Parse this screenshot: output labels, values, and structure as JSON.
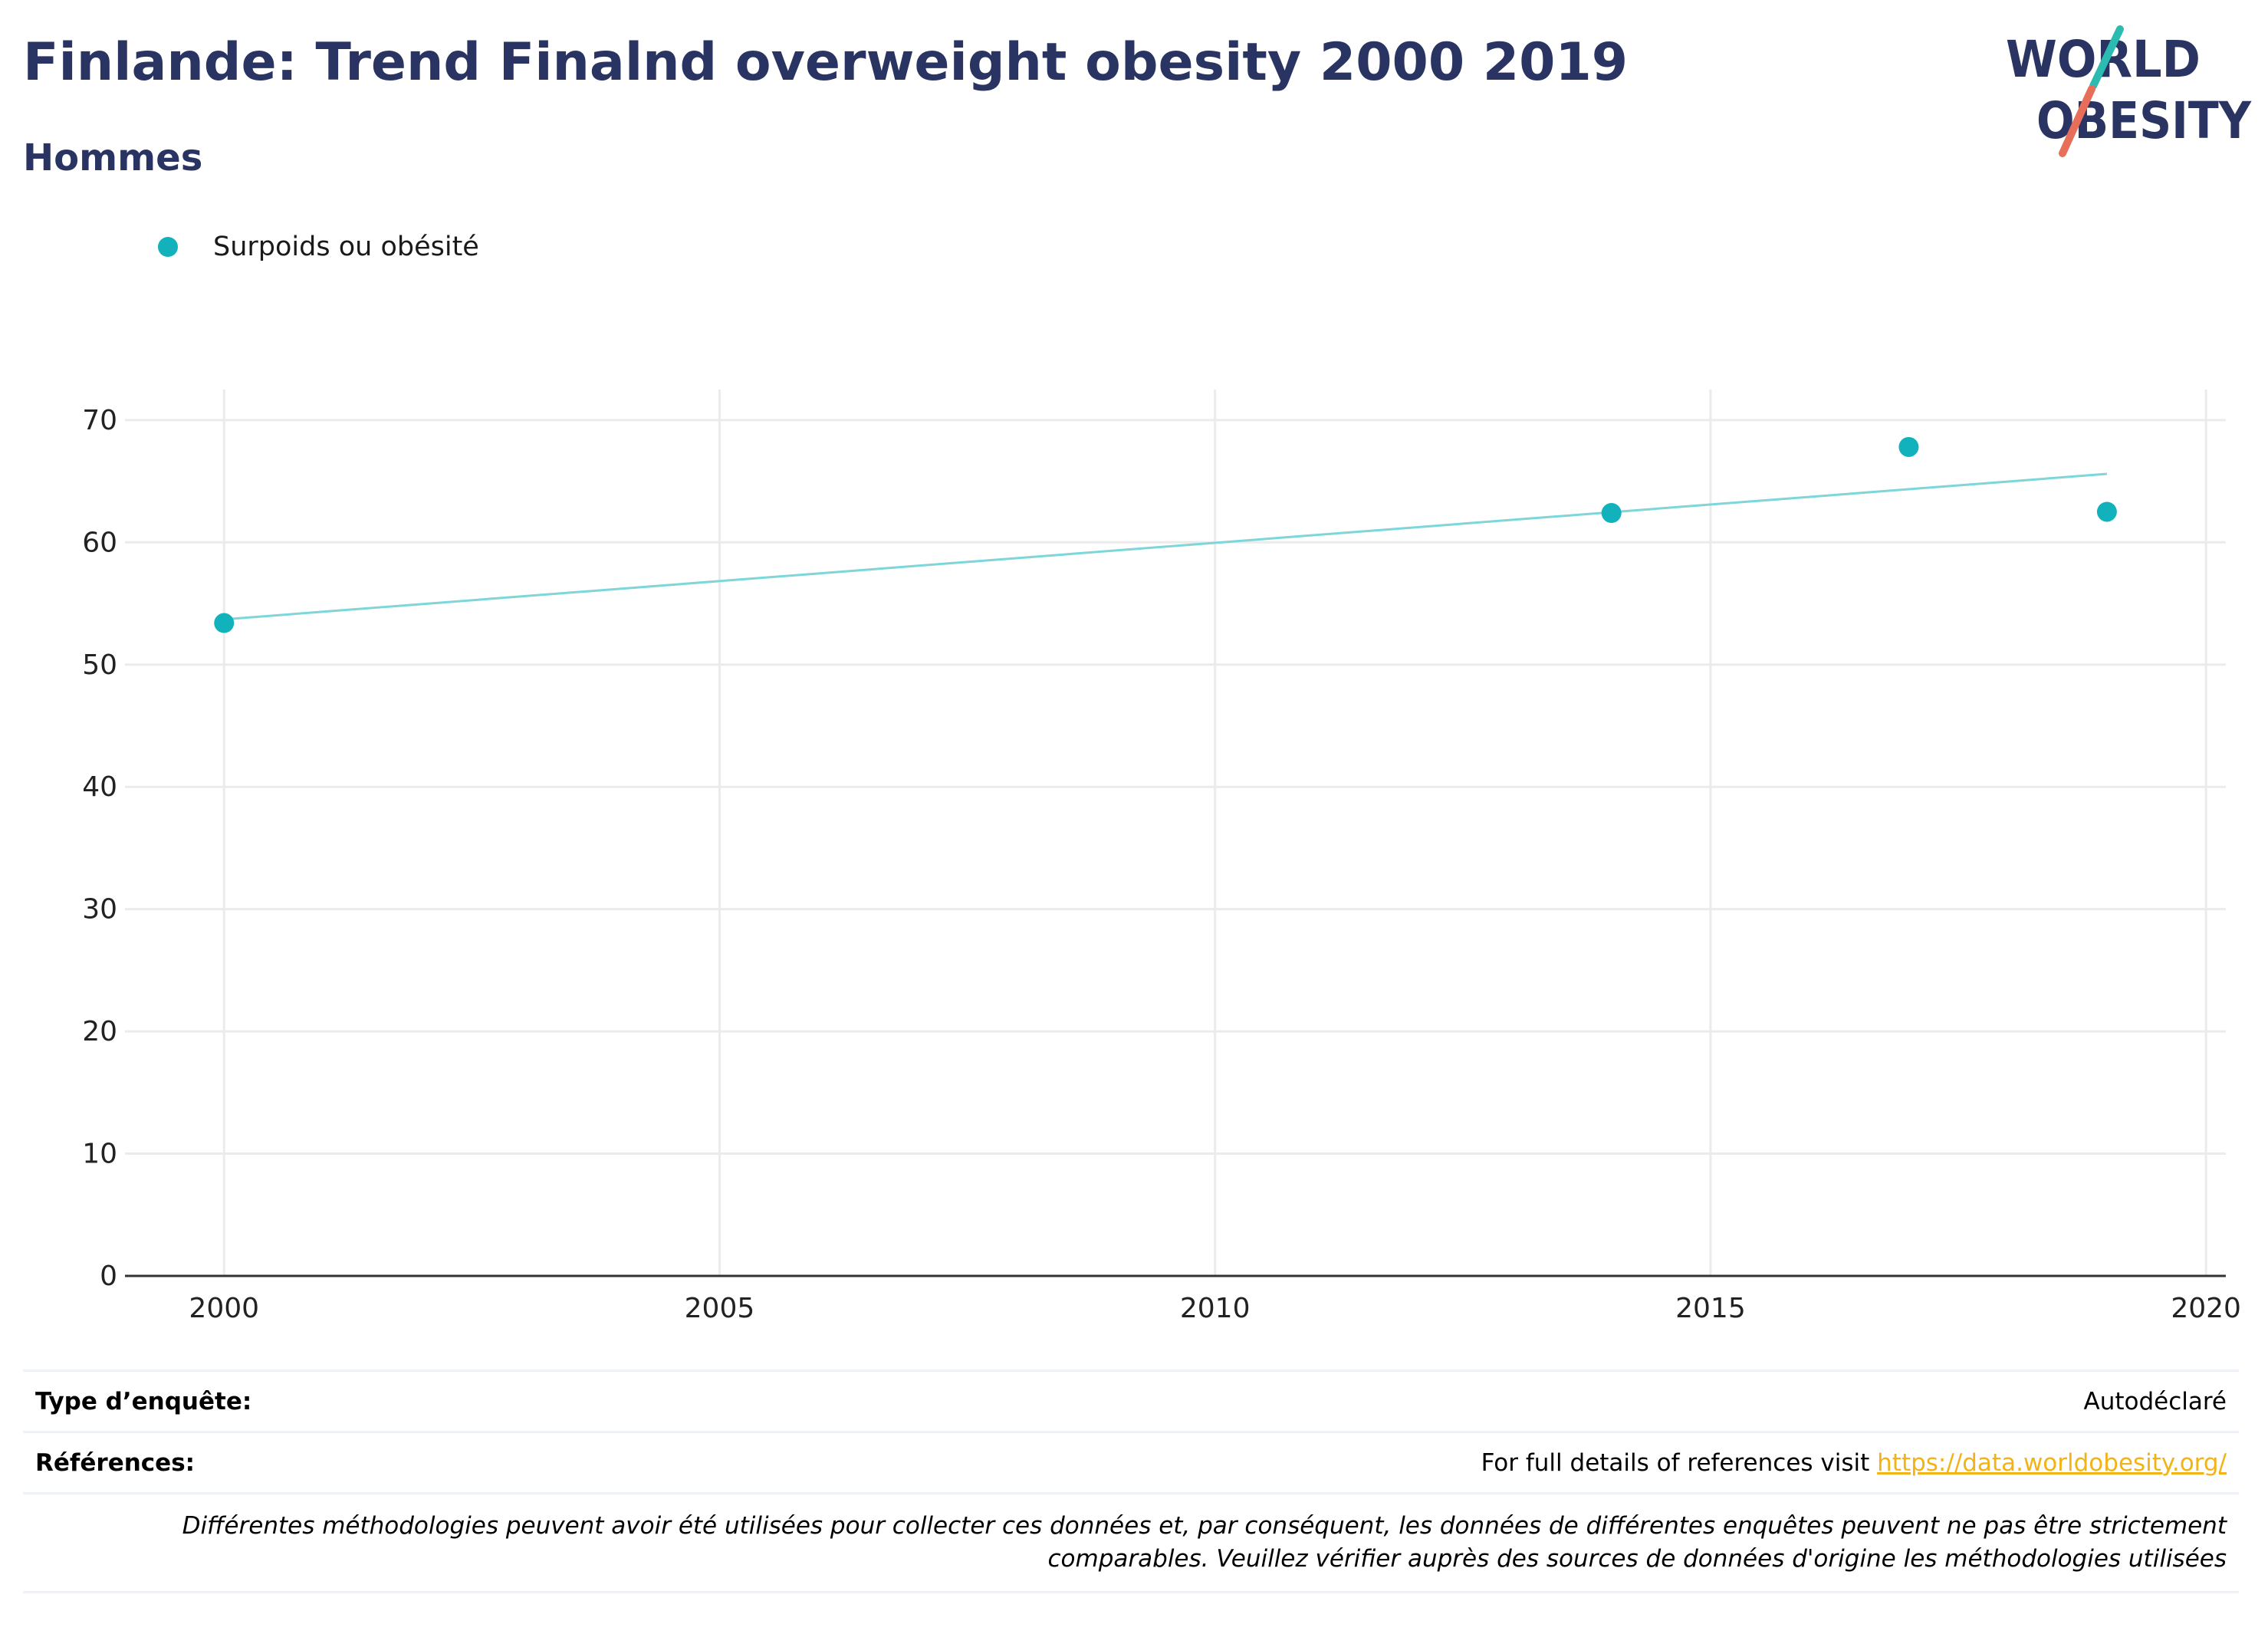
{
  "header": {
    "title": "Finlande: Trend Finalnd overweight obesity 2000 2019",
    "subtitle": "Hommes"
  },
  "logo": {
    "line1": "WORLD",
    "line2": "OBESITY",
    "colors": {
      "text": "#2a3463",
      "slash_top": "#2bbbb0",
      "slash_bottom": "#e76f5a"
    }
  },
  "colors": {
    "series": "#12b2bc",
    "trend": "#7dd6da",
    "grid": "#ebebeb",
    "axis": "#333333"
  },
  "chart_data": {
    "type": "scatter",
    "title": "Finlande: Trend Finalnd overweight obesity 2000 2019",
    "subtitle": "Hommes",
    "xlim": [
      1999,
      2020.2
    ],
    "ylim": [
      0,
      72.5
    ],
    "x_ticks": [
      2000,
      2005,
      2010,
      2015,
      2020
    ],
    "y_ticks": [
      0,
      10,
      20,
      30,
      40,
      50,
      60,
      70
    ],
    "grid": true,
    "legend_position": "top-left",
    "series": [
      {
        "name": "Surpoids ou obésité",
        "color": "#12b2bc",
        "points": [
          {
            "x": 2000,
            "y": 53.4
          },
          {
            "x": 2014,
            "y": 62.4
          },
          {
            "x": 2017,
            "y": 67.8
          },
          {
            "x": 2019,
            "y": 62.5
          }
        ]
      }
    ],
    "trendline": {
      "color": "#7dd6da",
      "points": [
        {
          "x": 2000,
          "y": 53.7
        },
        {
          "x": 2019,
          "y": 65.6
        }
      ]
    }
  },
  "footer": {
    "survey_label": "Type d’enquête:",
    "survey_value": "Autodéclaré",
    "references_label": "Références:",
    "references_text": "For full details of references visit ",
    "references_link": "https://data.worldobesity.org/",
    "note_line1": "Différentes méthodologies peuvent avoir été utilisées pour collecter ces données et, par conséquent, les données de différentes enquêtes peuvent ne pas être strictement",
    "note_line2": "comparables. Veuillez vérifier auprès des sources de données d'origine les méthodologies utilisées"
  }
}
